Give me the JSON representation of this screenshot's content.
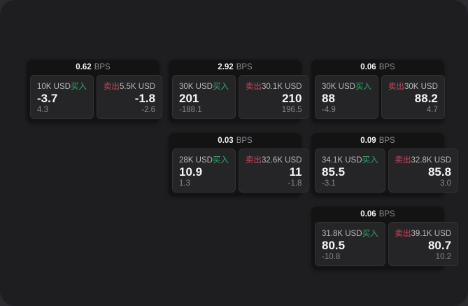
{
  "labels": {
    "unit": "BPS",
    "buy": "买入",
    "sell": "卖出"
  },
  "colors": {
    "buy": "#2fa968",
    "sell": "#c9495e",
    "window_bg": "#1e1e20",
    "card_bg": "#131314",
    "cell_bg": "#252527"
  },
  "cards": [
    {
      "row": 1,
      "col": 1,
      "bps": "0.62",
      "buy": {
        "amount": "10K USD",
        "value": "-3.7",
        "delta": "4.3"
      },
      "sell": {
        "amount": "5.5K USD",
        "value": "-1.8",
        "delta": "-2.6"
      }
    },
    {
      "row": 1,
      "col": 2,
      "bps": "2.92",
      "buy": {
        "amount": "30K USD",
        "value": "201",
        "delta": "-188.1"
      },
      "sell": {
        "amount": "30.1K USD",
        "value": "210",
        "delta": "196.5"
      }
    },
    {
      "row": 1,
      "col": 3,
      "bps": "0.06",
      "buy": {
        "amount": "30K USD",
        "value": "88",
        "delta": "-4.9"
      },
      "sell": {
        "amount": "30K USD",
        "value": "88.2",
        "delta": "4.7"
      }
    },
    {
      "row": 2,
      "col": 2,
      "bps": "0.03",
      "buy": {
        "amount": "28K USD",
        "value": "10.9",
        "delta": "1.3"
      },
      "sell": {
        "amount": "32.6K USD",
        "value": "11",
        "delta": "-1.8"
      }
    },
    {
      "row": 2,
      "col": 3,
      "bps": "0.09",
      "buy": {
        "amount": "34.1K USD",
        "value": "85.5",
        "delta": "-3.1"
      },
      "sell": {
        "amount": "32.8K USD",
        "value": "85.8",
        "delta": "3.0"
      }
    },
    {
      "row": 3,
      "col": 3,
      "bps": "0.06",
      "buy": {
        "amount": "31.8K USD",
        "value": "80.5",
        "delta": "-10.8"
      },
      "sell": {
        "amount": "39.1K USD",
        "value": "80.7",
        "delta": "10.2"
      }
    }
  ]
}
